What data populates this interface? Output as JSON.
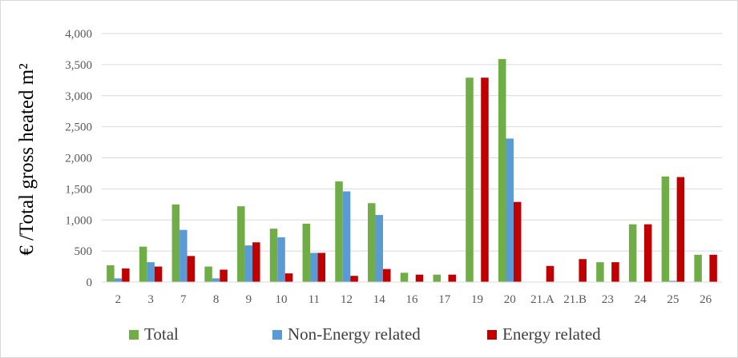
{
  "chart_data": {
    "type": "bar",
    "ylabel": "€ /Total gross heated m²",
    "xlabel": "",
    "ylim": [
      0,
      4000
    ],
    "yticks": [
      "0",
      "500",
      "1,000",
      "1,500",
      "2,000",
      "2,500",
      "3,000",
      "3,500",
      "4,000"
    ],
    "ytick_values": [
      0,
      500,
      1000,
      1500,
      2000,
      2500,
      3000,
      3500,
      4000
    ],
    "grid": true,
    "legend_position": "bottom",
    "categories": [
      "2",
      "3",
      "7",
      "8",
      "9",
      "10",
      "11",
      "12",
      "14",
      "16",
      "17",
      "19",
      "20",
      "21.A",
      "21.B",
      "23",
      "24",
      "25",
      "26"
    ],
    "series": [
      {
        "name": "Total",
        "color": "#70ad47",
        "values": [
          270,
          570,
          1250,
          250,
          1220,
          860,
          940,
          1620,
          1270,
          150,
          120,
          3290,
          3590,
          0,
          0,
          320,
          930,
          1700,
          440
        ]
      },
      {
        "name": "Non-Energy related",
        "color": "#5b9bd5",
        "values": [
          60,
          320,
          840,
          60,
          590,
          720,
          470,
          1460,
          1080,
          0,
          0,
          0,
          2310,
          0,
          0,
          0,
          0,
          20,
          0
        ]
      },
      {
        "name": "Energy related",
        "color": "#c00000",
        "values": [
          220,
          250,
          420,
          200,
          640,
          140,
          470,
          100,
          210,
          120,
          120,
          3290,
          1290,
          260,
          370,
          320,
          930,
          1690,
          440
        ]
      }
    ]
  }
}
